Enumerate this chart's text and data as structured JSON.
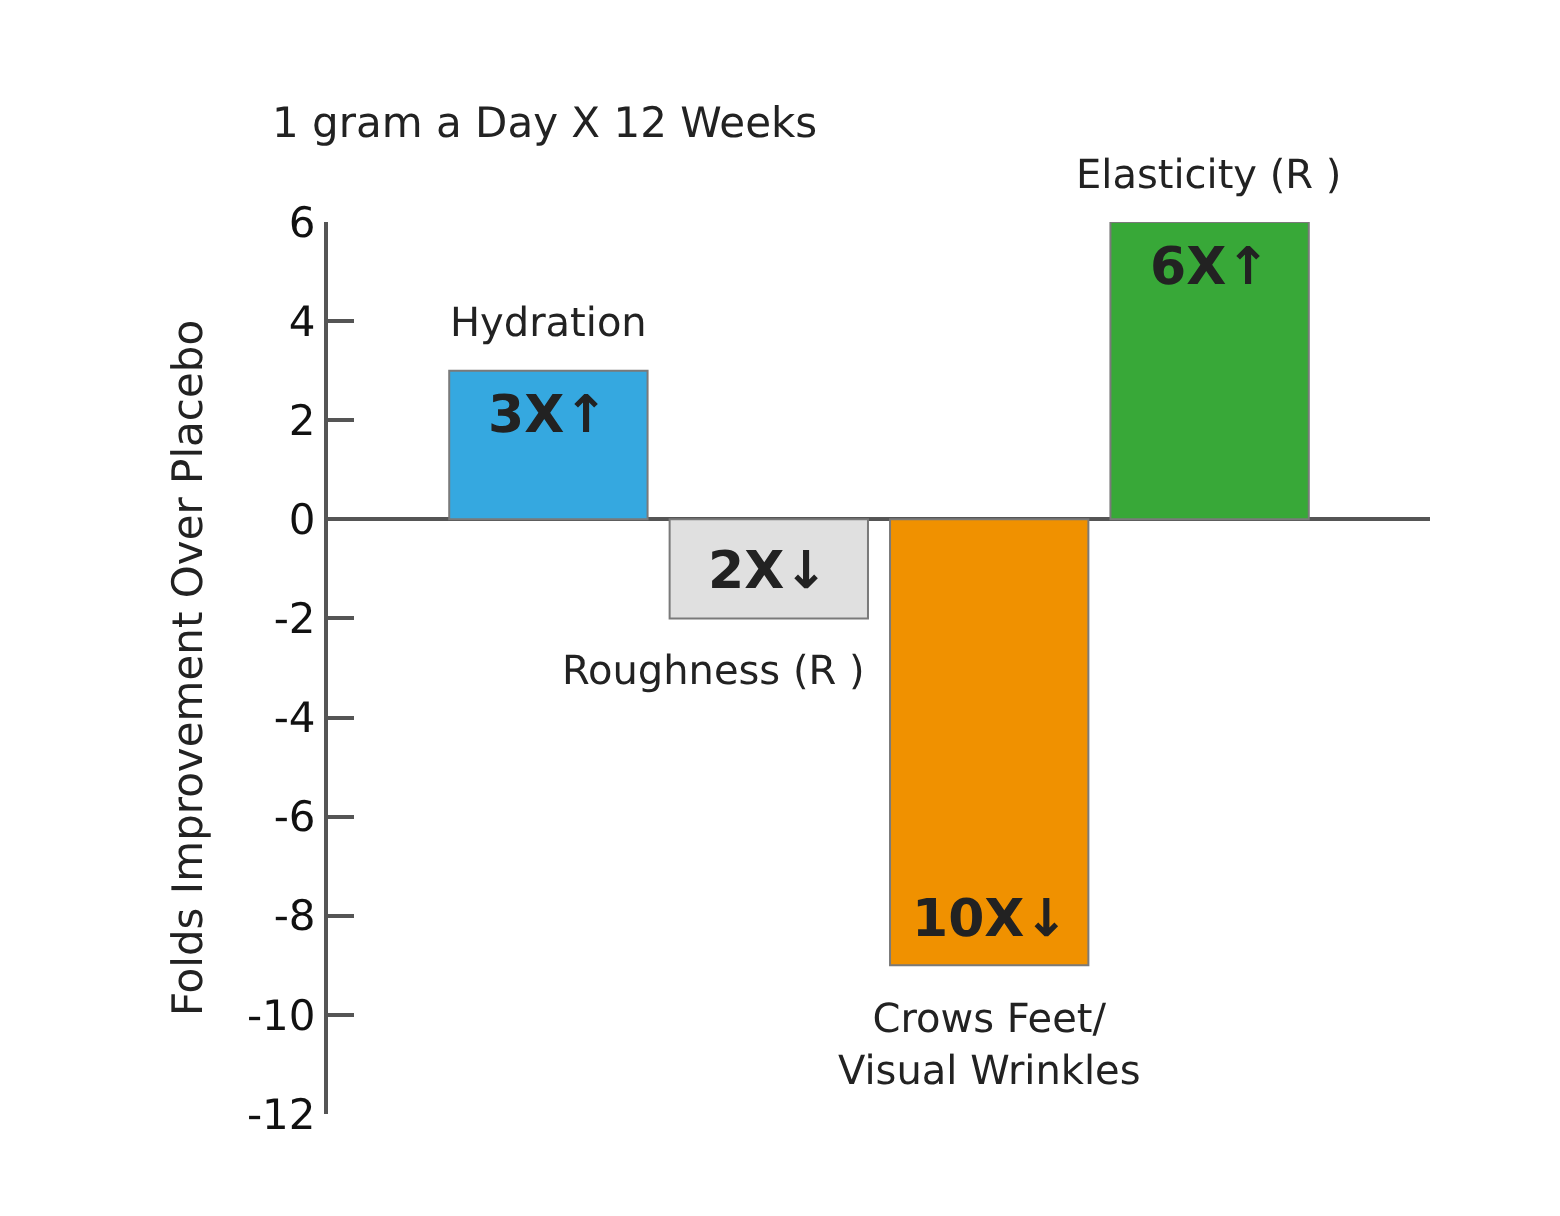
{
  "chart_data": {
    "type": "bar",
    "title": "1 gram a Day X 12 Weeks",
    "ylabel": "Folds Improvement Over Placebo",
    "categories": [
      "Hydration",
      "Roughness (R )",
      "Crows Feet/\nVisual Wrinkles",
      "Elasticity (R )"
    ],
    "values": [
      3,
      -2,
      -9,
      6
    ],
    "colors": [
      "#35a8e0",
      "#e0e0e0",
      "#f09100",
      "#38a838"
    ],
    "annotations": [
      {
        "text": "3X↑",
        "x": "Hydration",
        "y": 3
      },
      {
        "text": "2X↓",
        "x": "Roughness (R )",
        "y": -2
      },
      {
        "text": "10X↓",
        "x": "Crows Feet/\nVisual Wrinkles",
        "y": -9
      },
      {
        "text": "6X↑",
        "x": "Elasticity (R )",
        "y": 6
      }
    ],
    "ylim": [
      -12,
      6
    ],
    "yticks": [
      -12,
      -10,
      -8,
      -6,
      -4,
      -2,
      0,
      2,
      4,
      6
    ]
  }
}
